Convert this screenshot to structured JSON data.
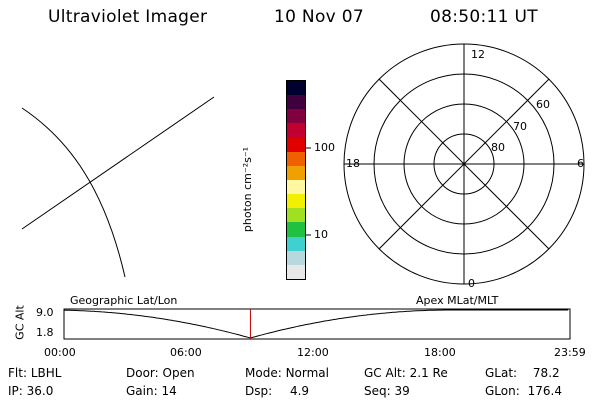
{
  "header": {
    "instrument": "Ultraviolet Imager",
    "date": "10 Nov 07",
    "time": "08:50:11 UT"
  },
  "colorbar": {
    "unit_label": "photon cm⁻²s⁻¹",
    "tick_labels": [
      "100",
      "10"
    ],
    "colors": [
      "#e8e8e8",
      "#b8d8e0",
      "#40d0d0",
      "#20c040",
      "#a0e020",
      "#f0f000",
      "#fff8a0",
      "#f0a000",
      "#f06000",
      "#e00000",
      "#c00030",
      "#800040",
      "#400040",
      "#000030"
    ]
  },
  "polar_plot": {
    "mlt_labels": {
      "top": "12",
      "left": "18",
      "right": "6",
      "bottom": "0"
    },
    "mlat_labels": [
      "60",
      "70",
      "80"
    ]
  },
  "timeline": {
    "y_axis_label": "GC Alt",
    "y_max_label": "9.0",
    "y_min_label": "1.8",
    "left_caption": "Geographic Lat/Lon",
    "right_caption": "Apex MLat/MLT",
    "x_tick_labels": [
      "00:00",
      "06:00",
      "12:00",
      "18:00",
      "23:59"
    ],
    "current_time_hours": 8.836
  },
  "info": {
    "flt_label": "Flt:",
    "flt_value": "LBHL",
    "ip_label": "IP:",
    "ip_value": "36.0",
    "door_label": "Door:",
    "door_value": "Open",
    "gain_label": "Gain:",
    "gain_value": "14",
    "mode_label": "Mode:",
    "mode_value": "Normal",
    "dsp_label": "Dsp:",
    "dsp_value": "4.9",
    "gcalt_label": "GC Alt:",
    "gcalt_value": "2.1 Re",
    "seq_label": "Seq:",
    "seq_value": "39",
    "glat_label": "GLat:",
    "glat_value": "78.2",
    "glon_label": "GLon:",
    "glon_value": "176.4"
  },
  "colors": {
    "foreground": "#000000",
    "time_marker": "#c00000"
  }
}
